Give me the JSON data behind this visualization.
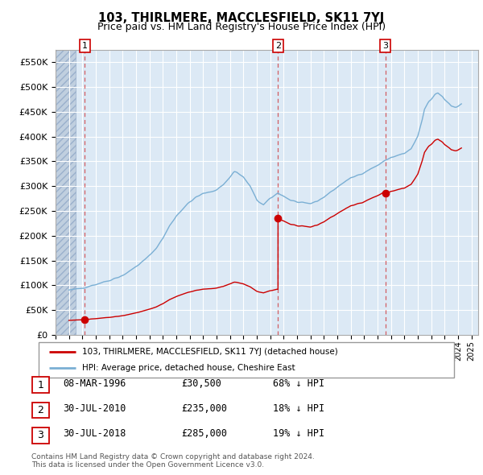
{
  "title": "103, THIRLMERE, MACCLESFIELD, SK11 7YJ",
  "subtitle": "Price paid vs. HM Land Registry's House Price Index (HPI)",
  "red_line_color": "#cc0000",
  "blue_line_color": "#7aafd4",
  "ylim": [
    0,
    575000
  ],
  "yticks": [
    0,
    50000,
    100000,
    150000,
    200000,
    250000,
    300000,
    350000,
    400000,
    450000,
    500000,
    550000
  ],
  "ytick_labels": [
    "£0",
    "£50K",
    "£100K",
    "£150K",
    "£200K",
    "£250K",
    "£300K",
    "£350K",
    "£400K",
    "£450K",
    "£500K",
    "£550K"
  ],
  "xlim_start": 1994.0,
  "xlim_end": 2025.5,
  "hatch_end": 1995.5,
  "sale_dates": [
    1996.18,
    2010.58,
    2018.58
  ],
  "sale_prices": [
    30500,
    235000,
    285000
  ],
  "sale_labels": [
    "1",
    "2",
    "3"
  ],
  "legend_entries": [
    "103, THIRLMERE, MACCLESFIELD, SK11 7YJ (detached house)",
    "HPI: Average price, detached house, Cheshire East"
  ],
  "table_rows": [
    [
      "1",
      "08-MAR-1996",
      "£30,500",
      "68% ↓ HPI"
    ],
    [
      "2",
      "30-JUL-2010",
      "£235,000",
      "18% ↓ HPI"
    ],
    [
      "3",
      "30-JUL-2018",
      "£285,000",
      "19% ↓ HPI"
    ]
  ],
  "footer": "Contains HM Land Registry data © Crown copyright and database right 2024.\nThis data is licensed under the Open Government Licence v3.0."
}
